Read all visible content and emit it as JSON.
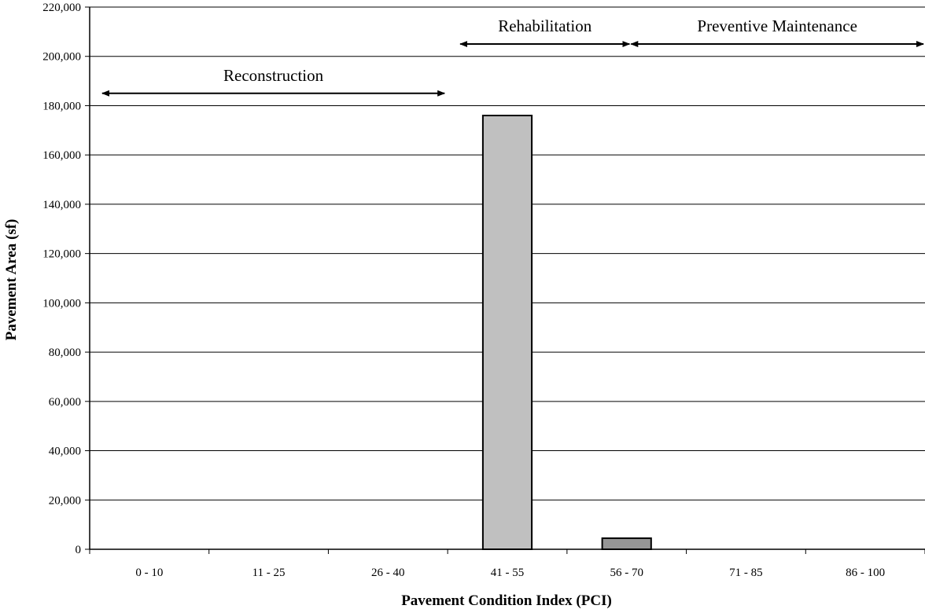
{
  "chart_data": {
    "type": "bar",
    "categories": [
      "0 - 10",
      "11 - 25",
      "26 - 40",
      "41 - 55",
      "56 - 70",
      "71 - 85",
      "86 - 100"
    ],
    "values": [
      0,
      0,
      0,
      176000,
      4500,
      0,
      0
    ],
    "bar_colors": [
      "#c0c0c0",
      "#c0c0c0",
      "#c0c0c0",
      "#c0c0c0",
      "#969696",
      "#c0c0c0",
      "#c0c0c0"
    ],
    "xlabel": "Pavement Condition Index (PCI)",
    "ylabel": "Pavement Area (sf)",
    "ylim": [
      0,
      220000
    ],
    "yticks": [
      0,
      20000,
      40000,
      60000,
      80000,
      100000,
      120000,
      140000,
      160000,
      180000,
      200000,
      220000
    ],
    "ytick_labels": [
      "0",
      "20,000",
      "40,000",
      "60,000",
      "80,000",
      "100,000",
      "120,000",
      "140,000",
      "160,000",
      "180,000",
      "200,000",
      "220,000"
    ],
    "grid": true,
    "annotations": [
      {
        "label": "Reconstruction",
        "from_category": 0,
        "to_category": 2,
        "y": 185000
      },
      {
        "label": "Rehabilitation",
        "from_category": 3,
        "to_category": 4,
        "y": 205000
      },
      {
        "label": "Preventive Maintenance",
        "from_category": 4,
        "to_category": 6,
        "y": 205000
      }
    ]
  }
}
